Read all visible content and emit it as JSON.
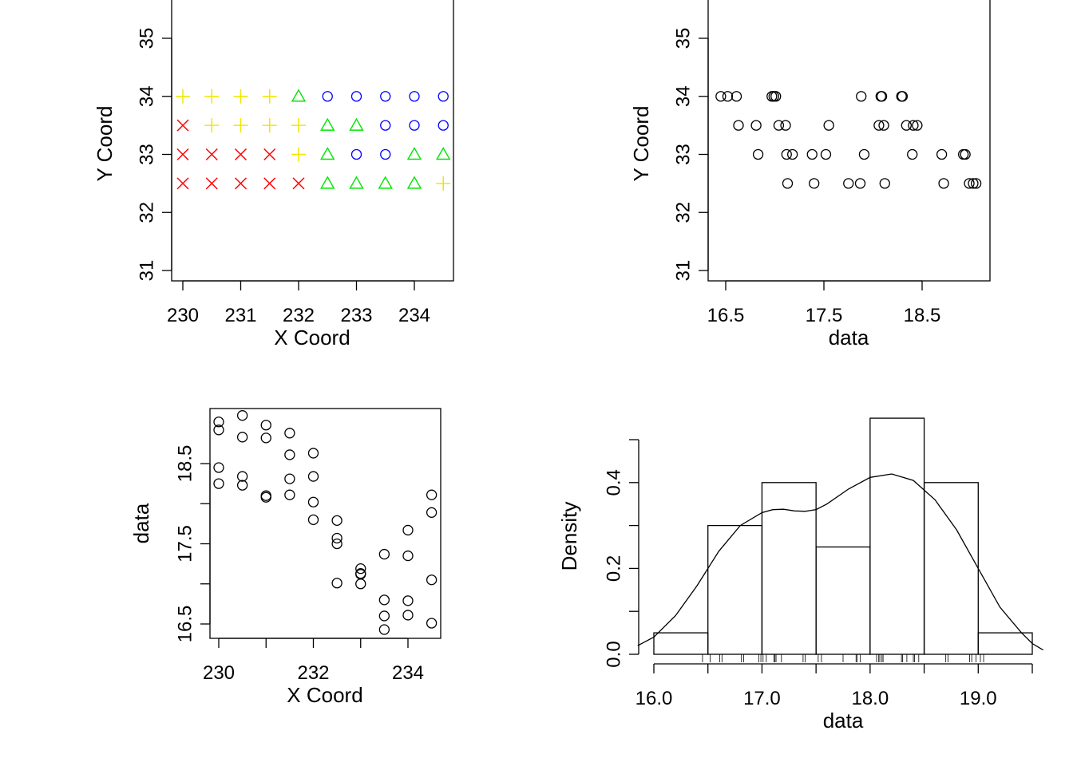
{
  "chart_data": [
    {
      "panel": "top-left",
      "type": "scatter",
      "title": "",
      "xlabel": "X Coord",
      "ylabel": "Y Coord",
      "xlim": [
        229.8,
        234.7
      ],
      "ylim": [
        30.9,
        35.7
      ],
      "xticks": [
        "230",
        "231",
        "232",
        "233",
        "234"
      ],
      "yticks": [
        "31",
        "32",
        "33",
        "34",
        "35"
      ],
      "grid": false,
      "legend": "none",
      "series": [
        {
          "symbol": "cross",
          "color": "#ff0000",
          "points": [
            [
              230,
              33.5
            ],
            [
              230,
              33
            ],
            [
              230.5,
              33
            ],
            [
              231,
              33
            ],
            [
              231.5,
              33
            ],
            [
              230,
              32.5
            ],
            [
              230.5,
              32.5
            ],
            [
              231,
              32.5
            ],
            [
              231.5,
              32.5
            ],
            [
              232,
              32.5
            ]
          ]
        },
        {
          "symbol": "plus",
          "color": "#f2e600",
          "points": [
            [
              230,
              34
            ],
            [
              230.5,
              34
            ],
            [
              231,
              34
            ],
            [
              231.5,
              34
            ],
            [
              230.5,
              33.5
            ],
            [
              231,
              33.5
            ],
            [
              231.5,
              33.5
            ],
            [
              232,
              33.5
            ],
            [
              232,
              33
            ],
            [
              234.5,
              32.5
            ]
          ]
        },
        {
          "symbol": "triangle",
          "color": "#00e600",
          "points": [
            [
              232,
              34
            ],
            [
              232.5,
              33.5
            ],
            [
              233,
              33.5
            ],
            [
              232.5,
              33
            ],
            [
              234,
              33
            ],
            [
              234.5,
              33
            ],
            [
              232.5,
              32.5
            ],
            [
              233,
              32.5
            ],
            [
              233.5,
              32.5
            ],
            [
              234,
              32.5
            ]
          ]
        },
        {
          "symbol": "circle",
          "color": "#0000ff",
          "points": [
            [
              232.5,
              34
            ],
            [
              233,
              34
            ],
            [
              233.5,
              34
            ],
            [
              234,
              34
            ],
            [
              234.5,
              34
            ],
            [
              233.5,
              33.5
            ],
            [
              234,
              33.5
            ],
            [
              234.5,
              33.5
            ],
            [
              233,
              33
            ],
            [
              233.5,
              33
            ]
          ]
        }
      ]
    },
    {
      "panel": "top-right",
      "type": "scatter",
      "title": "",
      "xlabel": "data",
      "ylabel": "Y Coord",
      "xlim": [
        16.4,
        19.1
      ],
      "ylim": [
        30.9,
        35.7
      ],
      "xticks": [
        "16.5",
        "17.5",
        "18.5"
      ],
      "yticks": [
        "31",
        "32",
        "33",
        "34",
        "35"
      ],
      "grid": false,
      "legend": "none",
      "x": [
        16.45,
        16.52,
        16.61,
        16.63,
        16.81,
        16.83,
        16.97,
        16.99,
        17.01,
        17.04,
        17.11,
        17.12,
        17.13,
        17.18,
        17.38,
        17.4,
        17.52,
        17.55,
        17.75,
        17.87,
        17.88,
        17.91,
        18.06,
        18.08,
        18.09,
        18.11,
        18.12,
        18.29,
        18.3,
        18.34,
        18.4,
        18.41,
        18.45,
        18.7,
        18.72,
        18.92,
        18.94,
        18.98,
        19.02,
        19.05
      ],
      "y": [
        34,
        34,
        34,
        33.5,
        33.5,
        33,
        34,
        34,
        34,
        33.5,
        33.5,
        33,
        32.5,
        33,
        33,
        32.5,
        33,
        33.5,
        32.5,
        32.5,
        34,
        33,
        33.5,
        34,
        34,
        33.5,
        32.5,
        34,
        34,
        33.5,
        33,
        33.5,
        33.5,
        33,
        32.5,
        33,
        33,
        32.5,
        32.5,
        32.5
      ]
    },
    {
      "panel": "bottom-left",
      "type": "scatter",
      "title": "",
      "xlabel": "X Coord",
      "ylabel": "data",
      "xlim": [
        229.8,
        234.7
      ],
      "ylim": [
        16.3,
        19.2
      ],
      "xticks": [
        "230",
        "232",
        "234"
      ],
      "yticks": [
        "16.5",
        "17.5",
        "18.5"
      ],
      "grid": false,
      "legend": "none",
      "x": [
        230,
        230,
        230,
        230,
        230.5,
        230.5,
        230.5,
        230.5,
        231,
        231,
        231,
        231,
        231.5,
        231.5,
        231.5,
        231.5,
        232,
        232,
        232,
        232,
        232.5,
        232.5,
        232.5,
        232.5,
        233,
        233,
        233,
        233,
        233.5,
        233.5,
        233.5,
        233.5,
        234,
        234,
        234,
        234,
        234.5,
        234.5,
        234.5,
        234.5
      ],
      "y": [
        19.02,
        18.92,
        18.45,
        18.25,
        19.1,
        18.83,
        18.34,
        18.23,
        18.98,
        18.82,
        18.1,
        18.08,
        18.88,
        18.61,
        18.31,
        18.11,
        18.63,
        18.34,
        18.02,
        17.8,
        17.79,
        17.57,
        17.5,
        17.01,
        17.19,
        17.12,
        17.0,
        17.13,
        17.37,
        16.8,
        16.6,
        16.43,
        17.67,
        17.35,
        16.79,
        16.61,
        18.11,
        17.89,
        17.05,
        16.51
      ]
    },
    {
      "panel": "bottom-right",
      "type": "histogram",
      "title": "",
      "xlabel": "data",
      "ylabel": "Density",
      "xlim": [
        15.87,
        19.58
      ],
      "ylim": [
        0,
        0.55
      ],
      "xticks": [
        "16.0",
        "17.0",
        "18.0",
        "19.0"
      ],
      "yticks": [
        "0.0",
        "0.2",
        "0.4"
      ],
      "grid": false,
      "legend": "none",
      "bins": [
        16.0,
        16.5,
        17.0,
        17.5,
        18.0,
        18.5,
        19.0,
        19.5
      ],
      "density": [
        0.05,
        0.3,
        0.4,
        0.25,
        0.55,
        0.4,
        0.05
      ],
      "density_curve": {
        "x": [
          15.85,
          16.0,
          16.2,
          16.4,
          16.6,
          16.8,
          17.0,
          17.1,
          17.2,
          17.3,
          17.4,
          17.5,
          17.6,
          17.8,
          18.0,
          18.2,
          18.4,
          18.6,
          18.8,
          19.0,
          19.2,
          19.4,
          19.5,
          19.6
        ],
        "y": [
          0.02,
          0.04,
          0.09,
          0.16,
          0.24,
          0.3,
          0.33,
          0.337,
          0.338,
          0.334,
          0.333,
          0.337,
          0.35,
          0.385,
          0.412,
          0.42,
          0.405,
          0.36,
          0.29,
          0.2,
          0.11,
          0.05,
          0.025,
          0.01
        ]
      },
      "rug": [
        16.45,
        16.52,
        16.61,
        16.63,
        16.81,
        16.83,
        16.97,
        16.99,
        17.01,
        17.04,
        17.11,
        17.12,
        17.13,
        17.18,
        17.38,
        17.4,
        17.52,
        17.55,
        17.75,
        17.87,
        17.88,
        17.91,
        18.06,
        18.08,
        18.09,
        18.11,
        18.12,
        18.29,
        18.3,
        18.34,
        18.4,
        18.41,
        18.45,
        18.7,
        18.72,
        18.92,
        18.94,
        18.98,
        19.02,
        19.05
      ]
    }
  ]
}
